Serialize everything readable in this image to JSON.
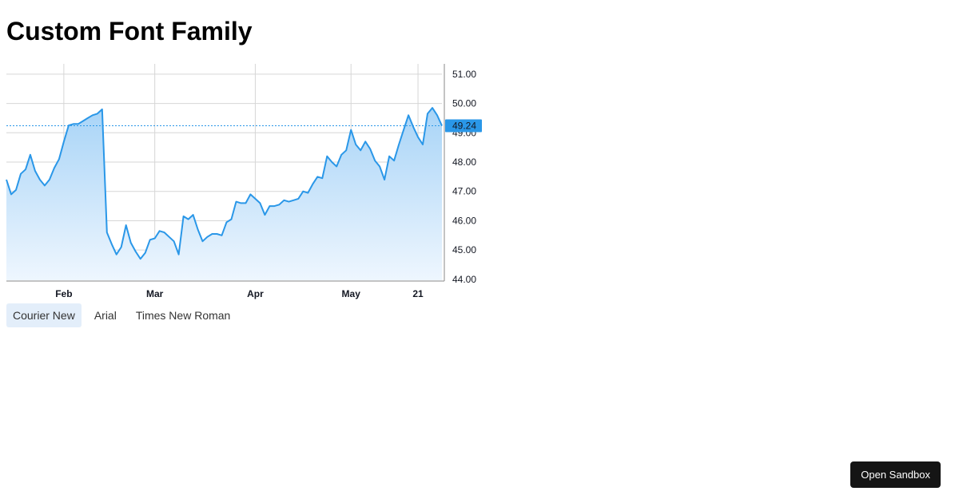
{
  "page": {
    "title": "Custom Font Family"
  },
  "font_options": [
    {
      "label": "Courier New",
      "active": true
    },
    {
      "label": "Arial",
      "active": false
    },
    {
      "label": "Times New Roman",
      "active": false
    }
  ],
  "sandbox_button": {
    "label": "Open Sandbox"
  },
  "colors": {
    "line": "#2a97e8",
    "area_top": "#a8d4f7",
    "area_bottom": "#eef6fe",
    "price_label_bg": "#2a97e8",
    "grid": "#d6d6d6"
  },
  "chart_data": {
    "type": "area",
    "y_ticks": [
      "51.00",
      "50.00",
      "49.00",
      "48.00",
      "47.00",
      "46.00",
      "45.00",
      "44.00"
    ],
    "ylim": [
      43.97,
      51.35
    ],
    "x_labels": [
      {
        "label": "Feb",
        "i": 12
      },
      {
        "label": "Mar",
        "i": 31
      },
      {
        "label": "Apr",
        "i": 52
      },
      {
        "label": "May",
        "i": 72
      },
      {
        "label": "21",
        "i": 86
      }
    ],
    "last_value": "49.24",
    "values": [
      47.4,
      46.9,
      47.05,
      47.6,
      47.75,
      48.25,
      47.7,
      47.4,
      47.2,
      47.4,
      47.8,
      48.1,
      48.7,
      49.25,
      49.3,
      49.3,
      49.4,
      49.5,
      49.6,
      49.65,
      49.8,
      45.6,
      45.2,
      44.85,
      45.1,
      45.85,
      45.25,
      44.95,
      44.7,
      44.9,
      45.35,
      45.4,
      45.65,
      45.6,
      45.45,
      45.3,
      44.85,
      46.15,
      46.05,
      46.2,
      45.7,
      45.3,
      45.45,
      45.55,
      45.55,
      45.5,
      45.95,
      46.05,
      46.65,
      46.6,
      46.6,
      46.9,
      46.75,
      46.6,
      46.2,
      46.5,
      46.5,
      46.55,
      46.7,
      46.65,
      46.7,
      46.75,
      47.0,
      46.95,
      47.25,
      47.5,
      47.45,
      48.2,
      48.0,
      47.85,
      48.25,
      48.4,
      49.1,
      48.6,
      48.4,
      48.7,
      48.45,
      48.05,
      47.85,
      47.4,
      48.2,
      48.05,
      48.6,
      49.1,
      49.6,
      49.2,
      48.85,
      48.6,
      49.65,
      49.85,
      49.6,
      49.24
    ]
  }
}
